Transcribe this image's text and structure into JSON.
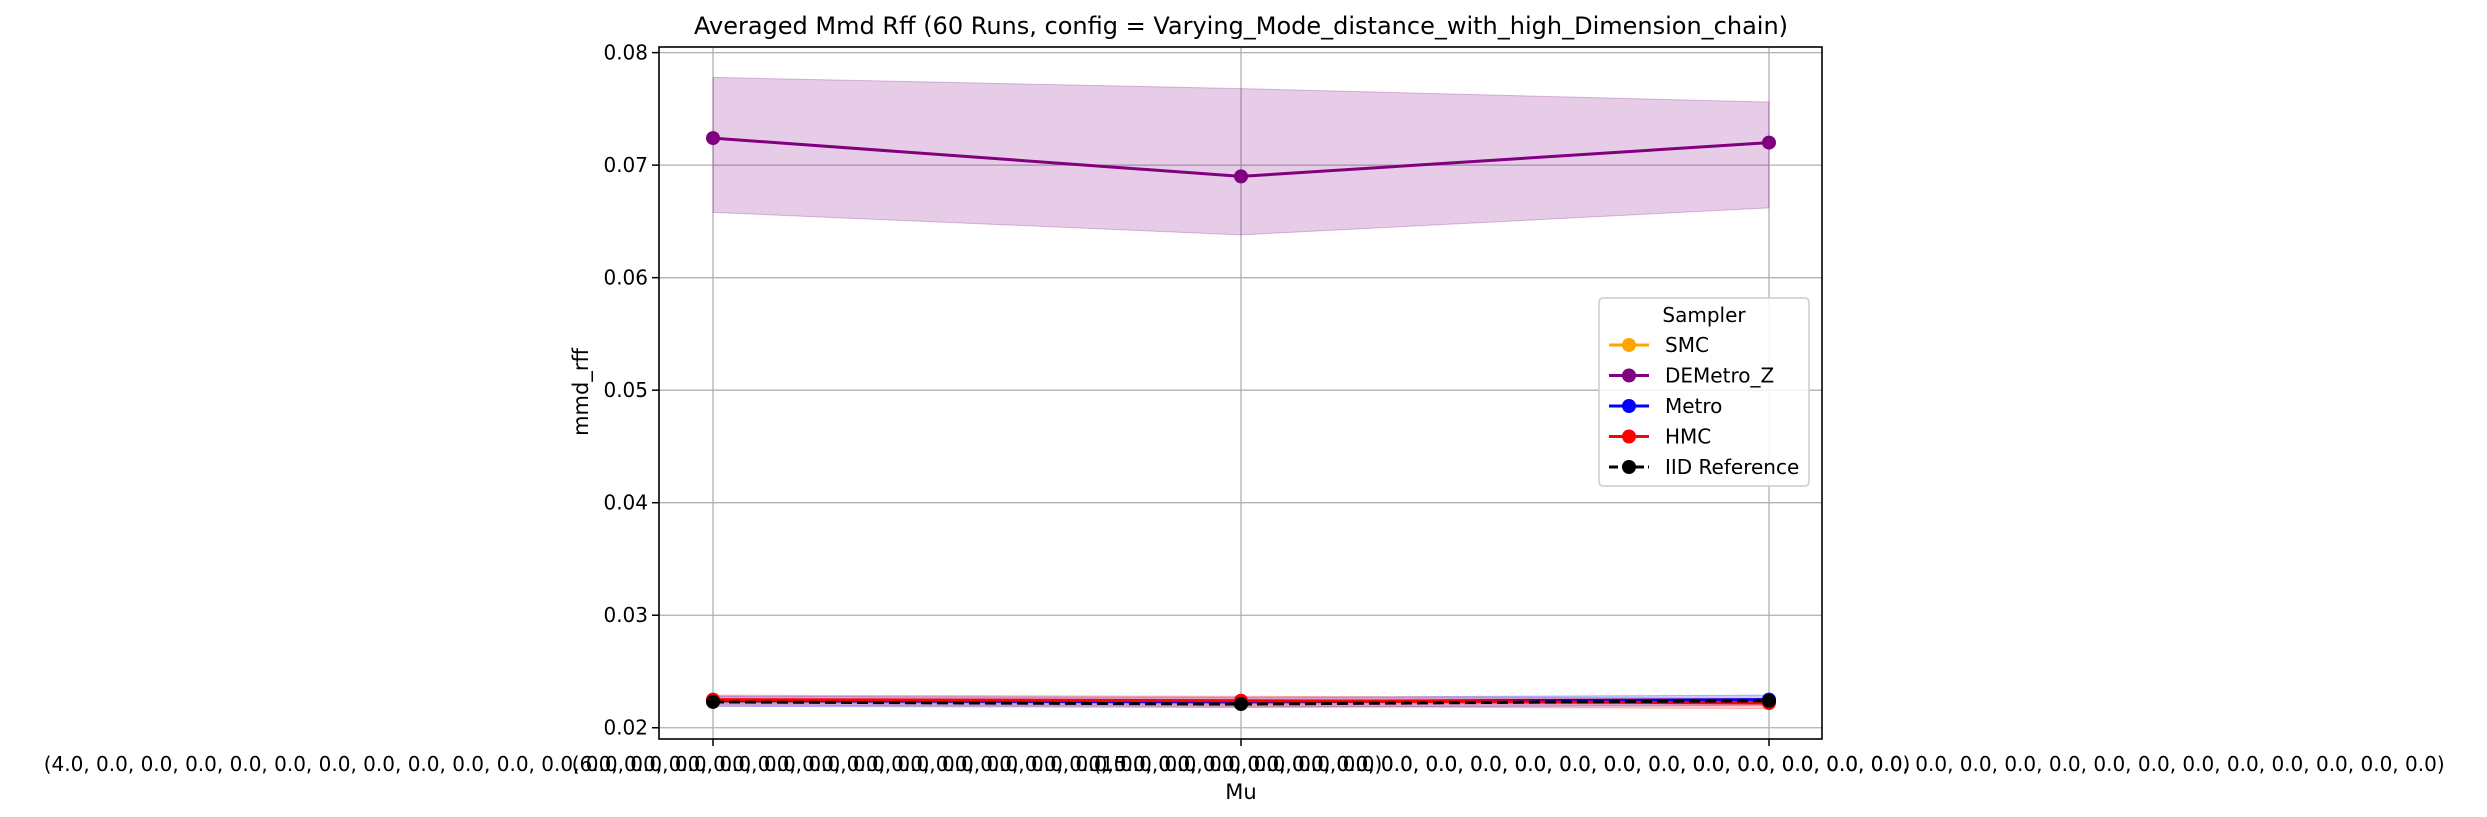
{
  "chart_data": {
    "type": "line",
    "title": "Averaged Mmd Rff (60 Runs, config = Varying_Mode_distance_with_high_Dimension_chain)",
    "xlabel": "Mu",
    "ylabel": "mmd_rff",
    "categories": [
      "(4.0, 0.0, 0.0, 0.0, 0.0, 0.0, 0.0, 0.0, 0.0, 0.0, 0.0, 0.0, 0.0, 0.0, 0.0, 0.0, 0.0, 0.0, 0.0, 0.0, 0.0, 0.0, 0.0, 0.0, 0.0, 0.0, 0.0, 0.0, 0.0, 0.0)",
      "(6.0, 0.0, 0.0, 0.0, 0.0, 0.0, 0.0, 0.0, 0.0, 0.0, 0.0, 0.0, 0.0, 0.0, 0.0, 0.0, 0.0, 0.0, 0.0, 0.0, 0.0, 0.0, 0.0, 0.0, 0.0, 0.0, 0.0, 0.0, 0.0, 0.0)",
      "(15.0, 0.0, 0.0, 0.0, 0.0, 0.0, 0.0, 0.0, 0.0, 0.0, 0.0, 0.0, 0.0, 0.0, 0.0, 0.0, 0.0, 0.0, 0.0, 0.0, 0.0, 0.0, 0.0, 0.0, 0.0, 0.0, 0.0, 0.0, 0.0, 0.0)"
    ],
    "ylim": [
      0.019,
      0.0805
    ],
    "yticks": [
      0.02,
      0.03,
      0.04,
      0.05,
      0.06,
      0.07,
      0.08
    ],
    "ytick_labels": [
      "0.02",
      "0.03",
      "0.04",
      "0.05",
      "0.06",
      "0.07",
      "0.08"
    ],
    "grid": true,
    "legend_title": "Sampler",
    "legend_position": "center-right",
    "series": [
      {
        "name": "SMC",
        "color": "#ffa500",
        "style": "solid",
        "values": [
          0.0224,
          0.0223,
          0.0224
        ],
        "band_lower": [
          0.0222,
          0.0221,
          0.0222
        ],
        "band_upper": [
          0.0226,
          0.0225,
          0.0226
        ]
      },
      {
        "name": "DEMetro_Z",
        "color": "#800080",
        "style": "solid",
        "values": [
          0.0724,
          0.069,
          0.072
        ],
        "band_lower": [
          0.0658,
          0.0638,
          0.0662
        ],
        "band_upper": [
          0.0778,
          0.0768,
          0.0756
        ]
      },
      {
        "name": "Metro",
        "color": "#0000ff",
        "style": "solid",
        "values": [
          0.0224,
          0.0223,
          0.0225
        ],
        "band_lower": [
          0.0219,
          0.0218,
          0.022
        ],
        "band_upper": [
          0.0228,
          0.0227,
          0.0229
        ]
      },
      {
        "name": "HMC",
        "color": "#ff0000",
        "style": "solid",
        "values": [
          0.0225,
          0.0224,
          0.0222
        ],
        "band_lower": [
          0.022,
          0.0219,
          0.0217
        ],
        "band_upper": [
          0.0229,
          0.0228,
          0.0226
        ]
      },
      {
        "name": "IID Reference",
        "color": "#000000",
        "style": "dashed",
        "values": [
          0.0223,
          0.0221,
          0.0224
        ]
      }
    ]
  }
}
